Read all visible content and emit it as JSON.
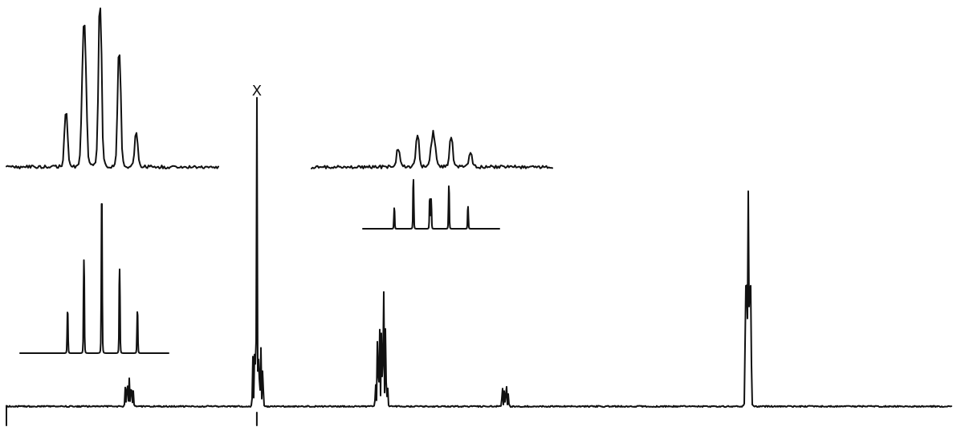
{
  "chart_data": {
    "type": "line",
    "title": "",
    "xlabel": "",
    "ylabel": "",
    "grid": false,
    "legend": "none",
    "ink_color": "#111111",
    "main_spectrum": {
      "name": "",
      "x_range": [
        0,
        1000
      ],
      "y_range": [
        0,
        100
      ],
      "baseline": 2,
      "multiplets": [
        {
          "center": 130,
          "lines": [
            [
              -6,
              6
            ],
            [
              -3,
              8
            ],
            [
              0,
              9
            ],
            [
              3,
              7
            ],
            [
              6,
              5
            ]
          ]
        },
        {
          "center": 265,
          "lines": [
            [
              -6,
              16
            ],
            [
              -3,
              20
            ],
            [
              0,
              100
            ],
            [
              3,
              16
            ],
            [
              6,
              19
            ],
            [
              9,
              12
            ]
          ]
        },
        {
          "center": 397,
          "lines": [
            [
              -9,
              7
            ],
            [
              -6,
              22
            ],
            [
              -3,
              25
            ],
            [
              0,
              24
            ],
            [
              3,
              38
            ],
            [
              6,
              25
            ],
            [
              9,
              6
            ]
          ]
        },
        {
          "center": 529,
          "lines": [
            [
              -6,
              6
            ],
            [
              -3,
              5
            ],
            [
              0,
              7
            ],
            [
              3,
              4
            ]
          ]
        },
        {
          "center": 785,
          "lines": [
            [
              -4,
              40
            ],
            [
              -2,
              38
            ],
            [
              0,
              68
            ],
            [
              2,
              40
            ],
            [
              4,
              38
            ]
          ]
        }
      ],
      "peak_label": {
        "text": "X",
        "center_index": 1
      }
    },
    "expansions": [
      {
        "name": "",
        "kind": "experimental",
        "x_range": [
          0,
          100
        ],
        "y_range": [
          0,
          100
        ],
        "lines": [
          [
            28,
            34
          ],
          [
            36,
            53
          ],
          [
            37,
            56
          ],
          [
            44,
            100
          ],
          [
            53,
            72
          ],
          [
            61,
            21
          ]
        ]
      },
      {
        "name": "",
        "kind": "simulated",
        "x_range": [
          0,
          100
        ],
        "y_range": [
          0,
          100
        ],
        "lines": [
          [
            32,
            27
          ],
          [
            43,
            61
          ],
          [
            55,
            100
          ],
          [
            67,
            55
          ],
          [
            79,
            27
          ]
        ]
      },
      {
        "name": "",
        "kind": "experimental",
        "x_range": [
          0,
          100
        ],
        "y_range": [
          0,
          100
        ],
        "lines": [
          [
            36,
            37
          ],
          [
            44,
            63
          ],
          [
            50,
            42
          ],
          [
            51,
            45
          ],
          [
            58,
            58
          ],
          [
            66,
            30
          ]
        ]
      },
      {
        "name": "",
        "kind": "simulated",
        "x_range": [
          0,
          100
        ],
        "y_range": [
          0,
          100
        ],
        "lines": [
          [
            23,
            42
          ],
          [
            37,
            100
          ],
          [
            49,
            60
          ],
          [
            50,
            60
          ],
          [
            63,
            87
          ],
          [
            77,
            45
          ]
        ]
      }
    ]
  }
}
